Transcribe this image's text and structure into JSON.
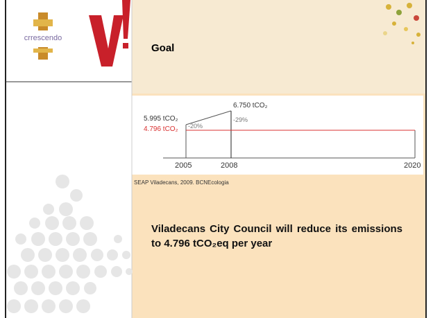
{
  "header": {
    "title": "Goal"
  },
  "logos": {
    "left": "crrescendo"
  },
  "figure": {
    "labels": {
      "peak": "6.750 tCO₂",
      "base": "5.995 tCO₂",
      "target": "4.796 tCO₂",
      "cut_base": "-20%",
      "cut_peak": "-29%"
    },
    "years": [
      "2005",
      "2008",
      "2020"
    ]
  },
  "caption": "SEAP Viladecans, 2009. BCNEcologia",
  "body": "Viladecans City Council will reduce its emissions to 4.796 tCO₂eq per year"
}
